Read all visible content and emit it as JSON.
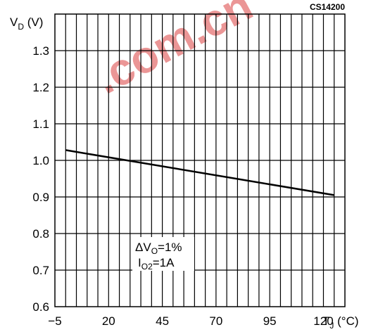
{
  "chart_data": {
    "type": "line",
    "code_label": "CS14200",
    "ylabel": {
      "main": "V",
      "sub": "D",
      "unit": " (V)"
    },
    "xlabel": {
      "main": "T",
      "sub": "J",
      "unit": " (°C)"
    },
    "xlim": [
      -5,
      130
    ],
    "ylim": [
      0.6,
      1.4
    ],
    "x_ticks": [
      -5,
      20,
      45,
      70,
      95,
      120
    ],
    "x_tick_labels": [
      "−5",
      "20",
      "45",
      "70",
      "95",
      "120"
    ],
    "x_grid_step": 5,
    "y_ticks": [
      0.6,
      0.7,
      0.8,
      0.9,
      1.0,
      1.1,
      1.2,
      1.3
    ],
    "y_tick_labels": [
      "0.6",
      "0.7",
      "0.8",
      "0.9",
      "1.0",
      "1.1",
      "1.2",
      "1.3"
    ],
    "grid": true,
    "series": [
      {
        "x": [
          0,
          125
        ],
        "y": [
          1.028,
          0.905
        ]
      }
    ],
    "annotation": {
      "line1": {
        "prefix": "ΔV",
        "sub": "O",
        "suffix": "=1%"
      },
      "line2": {
        "prefix": "I",
        "sub": "O2",
        "suffix": "=1A"
      }
    },
    "watermark": ".com.cn",
    "colors": {
      "axis": "#000000",
      "grid": "#000000",
      "line": "#000000",
      "watermark": "#e57373"
    }
  }
}
